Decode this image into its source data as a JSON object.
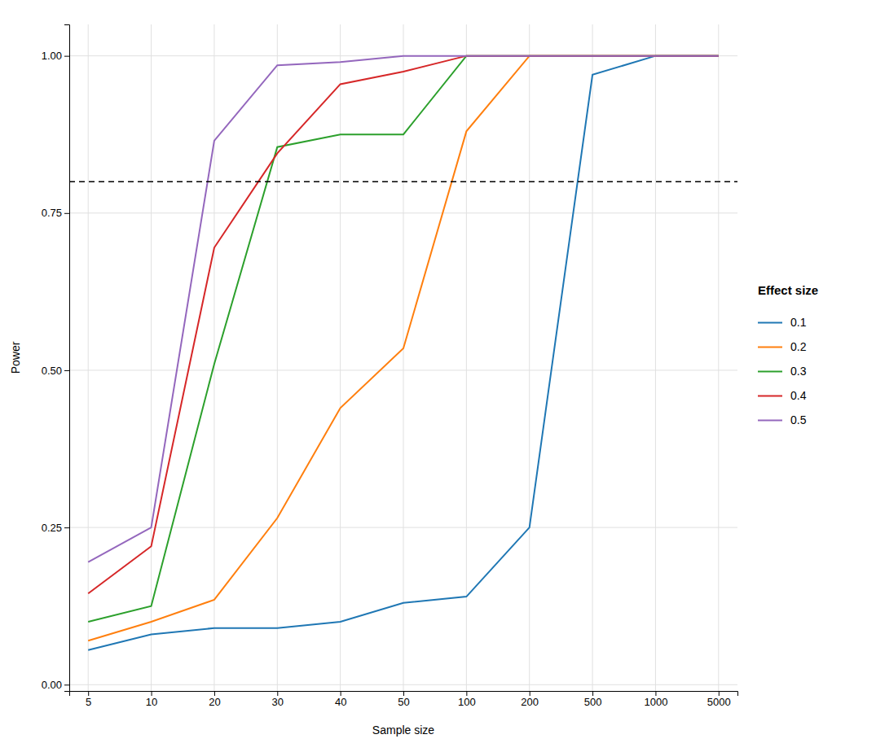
{
  "chart_data": {
    "type": "line",
    "x_label": "Sample size",
    "y_label": "Power",
    "categories": [
      "5",
      "10",
      "20",
      "30",
      "40",
      "50",
      "100",
      "200",
      "500",
      "1000",
      "5000"
    ],
    "series": [
      {
        "name": "0.1",
        "values": [
          0.055,
          0.08,
          0.09,
          0.09,
          0.1,
          0.13,
          0.14,
          0.25,
          0.97,
          1.0,
          1.0
        ]
      },
      {
        "name": "0.2",
        "values": [
          0.07,
          0.1,
          0.135,
          0.265,
          0.44,
          0.535,
          0.88,
          1.0,
          1.0,
          1.0,
          1.0
        ]
      },
      {
        "name": "0.3",
        "values": [
          0.1,
          0.125,
          0.51,
          0.855,
          0.875,
          0.875,
          1.0,
          1.0,
          1.0,
          1.0,
          1.0
        ]
      },
      {
        "name": "0.4",
        "values": [
          0.145,
          0.22,
          0.695,
          0.845,
          0.955,
          0.975,
          1.0,
          1.0,
          1.0,
          1.0,
          1.0
        ]
      },
      {
        "name": "0.5",
        "values": [
          0.195,
          0.25,
          0.865,
          0.985,
          0.99,
          1.0,
          1.0,
          1.0,
          1.0,
          1.0,
          1.0
        ]
      }
    ],
    "hline": {
      "y": 0.8,
      "line_style": "dashed",
      "color": "#000000"
    },
    "ylim": [
      -0.01,
      1.05
    ],
    "yticks": [
      {
        "value": 0,
        "label": "0.00"
      },
      0.25,
      {
        "value": 0.5,
        "label": "0.50"
      },
      0.75,
      {
        "value": 1,
        "label": "1.00"
      }
    ],
    "grid": true,
    "legend": "right",
    "legend_title": "Effect size"
  }
}
